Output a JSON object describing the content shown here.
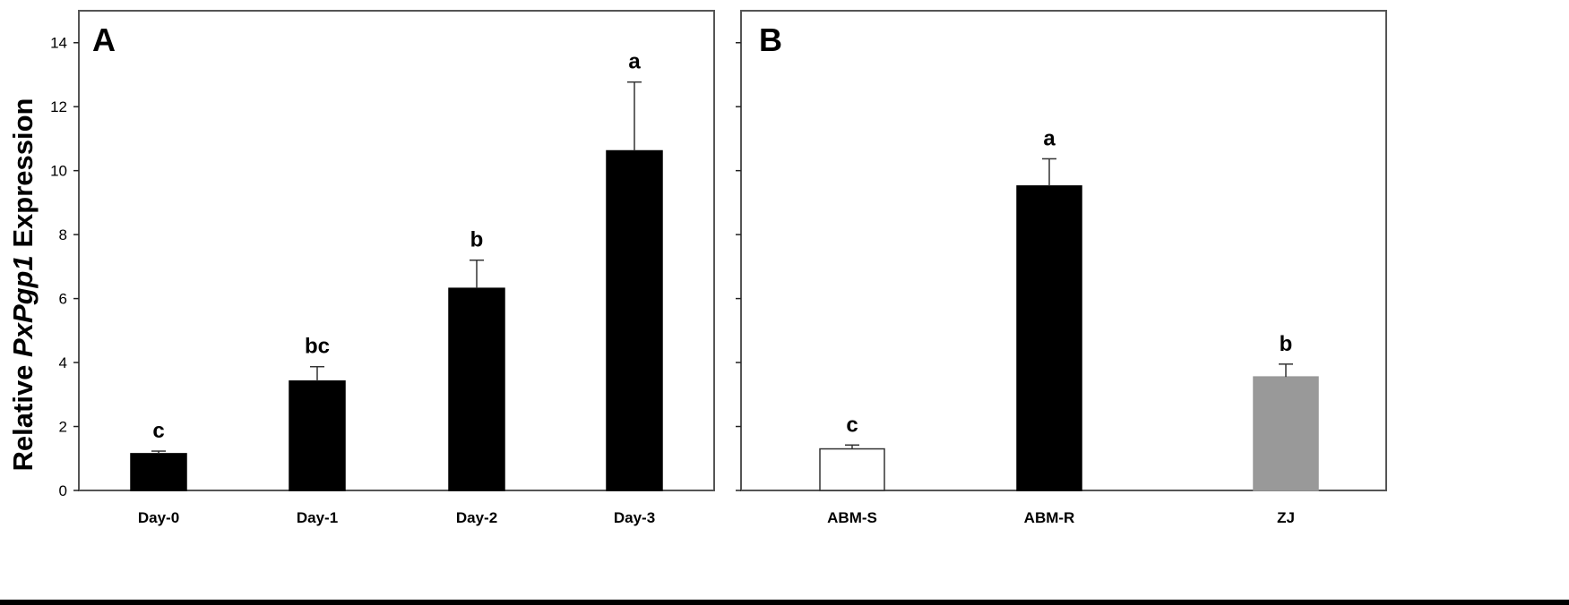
{
  "y_axis_title": {
    "prefix": "Relative ",
    "gene": "PxPgp1",
    "suffix": " Expression"
  },
  "chart_data": [
    {
      "type": "bar",
      "panel": "A",
      "categories": [
        "Day-0",
        "Day-1",
        "Day-2",
        "Day-3"
      ],
      "values": [
        1.15,
        3.42,
        6.32,
        10.62
      ],
      "errors": [
        0.08,
        0.45,
        0.88,
        2.15
      ],
      "significance": [
        "c",
        "bc",
        "b",
        "a"
      ],
      "bar_colors": [
        "#000000",
        "#000000",
        "#000000",
        "#000000"
      ],
      "ylim": [
        0,
        15
      ],
      "yticks": [
        0,
        2,
        4,
        6,
        8,
        10,
        12,
        14
      ],
      "ytick_labels_shown": true,
      "grid": false
    },
    {
      "type": "bar",
      "panel": "B",
      "categories": [
        "ABM-S",
        "ABM-R",
        "ZJ"
      ],
      "values": [
        1.3,
        9.52,
        3.55
      ],
      "errors": [
        0.12,
        0.85,
        0.4
      ],
      "significance": [
        "c",
        "a",
        "b"
      ],
      "bar_colors": [
        "#ffffff",
        "#000000",
        "#999999"
      ],
      "ylim": [
        0,
        15
      ],
      "yticks": [
        0,
        2,
        4,
        6,
        8,
        10,
        12,
        14
      ],
      "ytick_labels_shown": false,
      "grid": false
    }
  ]
}
